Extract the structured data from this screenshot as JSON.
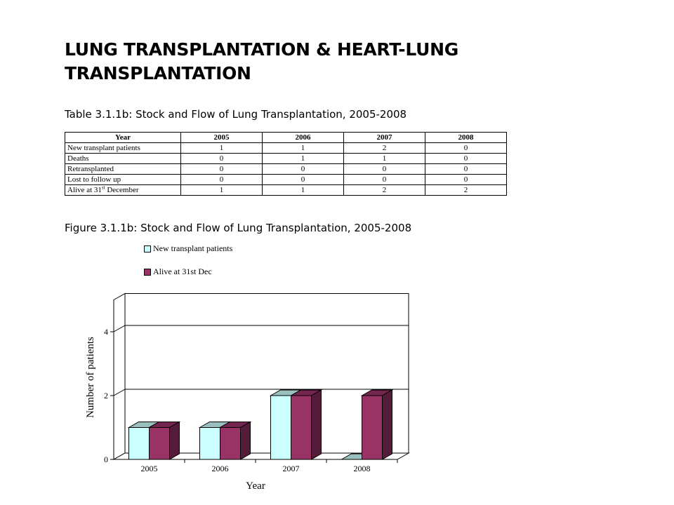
{
  "title": "LUNG TRANSPLANTATION & HEART-LUNG TRANSPLANTATION",
  "table_caption": "Table 3.1.1b: Stock and Flow of Lung Transplantation, 2005-2008",
  "figure_caption": "Figure 3.1.1b: Stock and Flow of Lung Transplantation, 2005-2008",
  "table": {
    "header": [
      "Year",
      "2005",
      "2006",
      "2007",
      "2008"
    ],
    "rows": [
      {
        "label": "New transplant patients",
        "values": [
          "1",
          "1",
          "2",
          "0"
        ]
      },
      {
        "label": "Deaths",
        "values": [
          "0",
          "1",
          "1",
          "0"
        ]
      },
      {
        "label": "Retransplanted",
        "values": [
          "0",
          "0",
          "0",
          "0"
        ]
      },
      {
        "label": "Lost to follow up",
        "values": [
          "0",
          "0",
          "0",
          "0"
        ]
      },
      {
        "label_main": "Alive at 31",
        "label_sup": "st",
        "label_rest": " December",
        "values": [
          "1",
          "1",
          "2",
          "2"
        ]
      }
    ]
  },
  "chart_data": {
    "type": "bar",
    "categories": [
      "2005",
      "2006",
      "2007",
      "2008"
    ],
    "series": [
      {
        "name": "New transplant patients",
        "values": [
          1,
          1,
          2,
          0
        ],
        "color": "#ccffff"
      },
      {
        "name": "Alive at 31st Dec",
        "values": [
          1,
          1,
          2,
          2
        ],
        "color": "#993366"
      }
    ],
    "yticks": [
      "0",
      "2",
      "4"
    ],
    "ylim": [
      0,
      5
    ],
    "xlabel": "Year",
    "ylabel": "Number of patients",
    "legend": "top-left",
    "grid": true,
    "style": "3d-column"
  }
}
